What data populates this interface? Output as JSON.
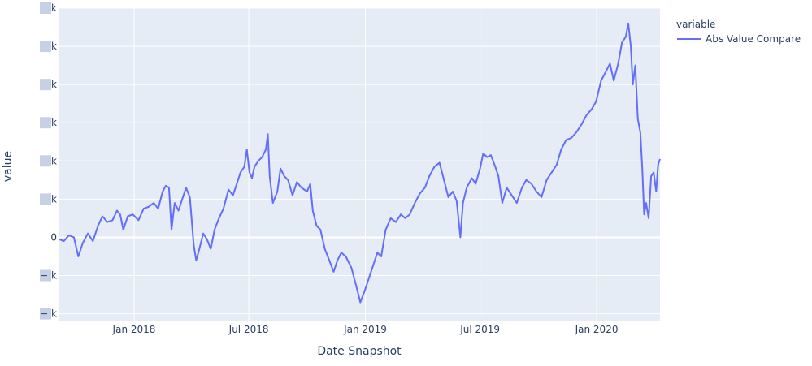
{
  "colors": {
    "plot_bg": "#e5ecf6",
    "grid": "#ffffff",
    "line": "#636efa",
    "text": "#2a3f5f",
    "redacted": "#c7d1e6"
  },
  "legend": {
    "title": "variable",
    "entry": "Abs Value Compare",
    "placement": "top-right, outside plot"
  },
  "chart_data": {
    "type": "line",
    "xlabel": "Date Snapshot",
    "ylabel": "value",
    "grid": true,
    "x_range": [
      "2017-09-05",
      "2020-04-10"
    ],
    "y_range_units": [
      -2.2,
      6.0
    ],
    "y_tick_labels": [
      "− k",
      "− k",
      "0",
      "k",
      "k",
      "k",
      "k",
      "k",
      "k"
    ],
    "y_tick_values": [
      -2,
      -1,
      0,
      1,
      2,
      3,
      4,
      5,
      6
    ],
    "y_tick_note": "tick label digits are obscured in the original; values are relative to 0",
    "x_ticks": [
      {
        "date": "2018-01-01",
        "label": "Jan 2018"
      },
      {
        "date": "2018-07-01",
        "label": "Jul 2018"
      },
      {
        "date": "2019-01-01",
        "label": "Jan 2019"
      },
      {
        "date": "2019-07-01",
        "label": "Jul 2019"
      },
      {
        "date": "2020-01-01",
        "label": "Jan 2020"
      }
    ],
    "series": [
      {
        "name": "Abs Value Compare",
        "points": [
          [
            "2017-09-05",
            -0.05
          ],
          [
            "2017-09-12",
            -0.1
          ],
          [
            "2017-09-20",
            0.05
          ],
          [
            "2017-09-28",
            0.0
          ],
          [
            "2017-10-05",
            -0.5
          ],
          [
            "2017-10-12",
            -0.15
          ],
          [
            "2017-10-20",
            0.1
          ],
          [
            "2017-10-28",
            -0.1
          ],
          [
            "2017-11-05",
            0.3
          ],
          [
            "2017-11-12",
            0.55
          ],
          [
            "2017-11-20",
            0.4
          ],
          [
            "2017-11-28",
            0.45
          ],
          [
            "2017-12-05",
            0.7
          ],
          [
            "2017-12-10",
            0.6
          ],
          [
            "2017-12-15",
            0.2
          ],
          [
            "2017-12-22",
            0.55
          ],
          [
            "2017-12-30",
            0.6
          ],
          [
            "2018-01-08",
            0.45
          ],
          [
            "2018-01-16",
            0.75
          ],
          [
            "2018-01-24",
            0.8
          ],
          [
            "2018-02-01",
            0.9
          ],
          [
            "2018-02-08",
            0.75
          ],
          [
            "2018-02-15",
            1.2
          ],
          [
            "2018-02-20",
            1.35
          ],
          [
            "2018-02-25",
            1.3
          ],
          [
            "2018-03-01",
            0.2
          ],
          [
            "2018-03-06",
            0.9
          ],
          [
            "2018-03-12",
            0.7
          ],
          [
            "2018-03-18",
            1.0
          ],
          [
            "2018-03-24",
            1.3
          ],
          [
            "2018-03-30",
            1.05
          ],
          [
            "2018-04-05",
            -0.2
          ],
          [
            "2018-04-09",
            -0.6
          ],
          [
            "2018-04-14",
            -0.3
          ],
          [
            "2018-04-20",
            0.1
          ],
          [
            "2018-04-26",
            -0.05
          ],
          [
            "2018-05-02",
            -0.3
          ],
          [
            "2018-05-08",
            0.2
          ],
          [
            "2018-05-15",
            0.5
          ],
          [
            "2018-05-22",
            0.75
          ],
          [
            "2018-05-30",
            1.25
          ],
          [
            "2018-06-06",
            1.1
          ],
          [
            "2018-06-12",
            1.4
          ],
          [
            "2018-06-18",
            1.7
          ],
          [
            "2018-06-24",
            1.85
          ],
          [
            "2018-06-28",
            2.3
          ],
          [
            "2018-07-02",
            1.7
          ],
          [
            "2018-07-06",
            1.55
          ],
          [
            "2018-07-10",
            1.85
          ],
          [
            "2018-07-16",
            2.0
          ],
          [
            "2018-07-22",
            2.1
          ],
          [
            "2018-07-28",
            2.3
          ],
          [
            "2018-07-31",
            2.7
          ],
          [
            "2018-08-03",
            1.6
          ],
          [
            "2018-08-08",
            0.9
          ],
          [
            "2018-08-15",
            1.2
          ],
          [
            "2018-08-20",
            1.8
          ],
          [
            "2018-08-26",
            1.6
          ],
          [
            "2018-09-01",
            1.5
          ],
          [
            "2018-09-08",
            1.1
          ],
          [
            "2018-09-15",
            1.45
          ],
          [
            "2018-09-22",
            1.3
          ],
          [
            "2018-10-01",
            1.2
          ],
          [
            "2018-10-06",
            1.4
          ],
          [
            "2018-10-10",
            0.7
          ],
          [
            "2018-10-16",
            0.3
          ],
          [
            "2018-10-22",
            0.2
          ],
          [
            "2018-10-29",
            -0.3
          ],
          [
            "2018-11-05",
            -0.6
          ],
          [
            "2018-11-12",
            -0.9
          ],
          [
            "2018-11-18",
            -0.6
          ],
          [
            "2018-11-24",
            -0.4
          ],
          [
            "2018-12-01",
            -0.5
          ],
          [
            "2018-12-10",
            -0.8
          ],
          [
            "2018-12-18",
            -1.3
          ],
          [
            "2018-12-24",
            -1.7
          ],
          [
            "2018-12-31",
            -1.4
          ],
          [
            "2019-01-06",
            -1.1
          ],
          [
            "2019-01-12",
            -0.8
          ],
          [
            "2019-01-20",
            -0.4
          ],
          [
            "2019-01-26",
            -0.5
          ],
          [
            "2019-02-02",
            0.2
          ],
          [
            "2019-02-10",
            0.5
          ],
          [
            "2019-02-18",
            0.4
          ],
          [
            "2019-02-26",
            0.6
          ],
          [
            "2019-03-05",
            0.5
          ],
          [
            "2019-03-12",
            0.6
          ],
          [
            "2019-03-20",
            0.9
          ],
          [
            "2019-03-28",
            1.15
          ],
          [
            "2019-04-05",
            1.3
          ],
          [
            "2019-04-12",
            1.6
          ],
          [
            "2019-04-20",
            1.85
          ],
          [
            "2019-04-28",
            1.95
          ],
          [
            "2019-05-05",
            1.5
          ],
          [
            "2019-05-12",
            1.05
          ],
          [
            "2019-05-19",
            1.2
          ],
          [
            "2019-05-25",
            0.95
          ],
          [
            "2019-05-31",
            0.0
          ],
          [
            "2019-06-04",
            0.9
          ],
          [
            "2019-06-10",
            1.3
          ],
          [
            "2019-06-18",
            1.55
          ],
          [
            "2019-06-24",
            1.4
          ],
          [
            "2019-07-01",
            1.8
          ],
          [
            "2019-07-06",
            2.2
          ],
          [
            "2019-07-12",
            2.1
          ],
          [
            "2019-07-18",
            2.15
          ],
          [
            "2019-07-25",
            1.85
          ],
          [
            "2019-07-30",
            1.6
          ],
          [
            "2019-08-05",
            0.9
          ],
          [
            "2019-08-12",
            1.3
          ],
          [
            "2019-08-20",
            1.1
          ],
          [
            "2019-08-28",
            0.9
          ],
          [
            "2019-09-05",
            1.3
          ],
          [
            "2019-09-12",
            1.5
          ],
          [
            "2019-09-20",
            1.4
          ],
          [
            "2019-09-28",
            1.2
          ],
          [
            "2019-10-06",
            1.05
          ],
          [
            "2019-10-14",
            1.5
          ],
          [
            "2019-10-22",
            1.7
          ],
          [
            "2019-10-30",
            1.9
          ],
          [
            "2019-11-06",
            2.3
          ],
          [
            "2019-11-14",
            2.55
          ],
          [
            "2019-11-22",
            2.6
          ],
          [
            "2019-11-30",
            2.75
          ],
          [
            "2019-12-08",
            2.95
          ],
          [
            "2019-12-16",
            3.2
          ],
          [
            "2019-12-24",
            3.35
          ],
          [
            "2019-12-31",
            3.55
          ],
          [
            "2020-01-08",
            4.1
          ],
          [
            "2020-01-16",
            4.35
          ],
          [
            "2020-01-22",
            4.55
          ],
          [
            "2020-01-28",
            4.1
          ],
          [
            "2020-02-04",
            4.55
          ],
          [
            "2020-02-10",
            5.1
          ],
          [
            "2020-02-16",
            5.25
          ],
          [
            "2020-02-20",
            5.6
          ],
          [
            "2020-02-24",
            5.0
          ],
          [
            "2020-02-27",
            4.0
          ],
          [
            "2020-03-02",
            4.5
          ],
          [
            "2020-03-06",
            3.1
          ],
          [
            "2020-03-10",
            2.75
          ],
          [
            "2020-03-13",
            1.8
          ],
          [
            "2020-03-16",
            0.6
          ],
          [
            "2020-03-19",
            0.9
          ],
          [
            "2020-03-23",
            0.5
          ],
          [
            "2020-03-27",
            1.6
          ],
          [
            "2020-03-31",
            1.7
          ],
          [
            "2020-04-04",
            1.2
          ],
          [
            "2020-04-07",
            1.9
          ],
          [
            "2020-04-10",
            2.05
          ]
        ]
      }
    ]
  }
}
